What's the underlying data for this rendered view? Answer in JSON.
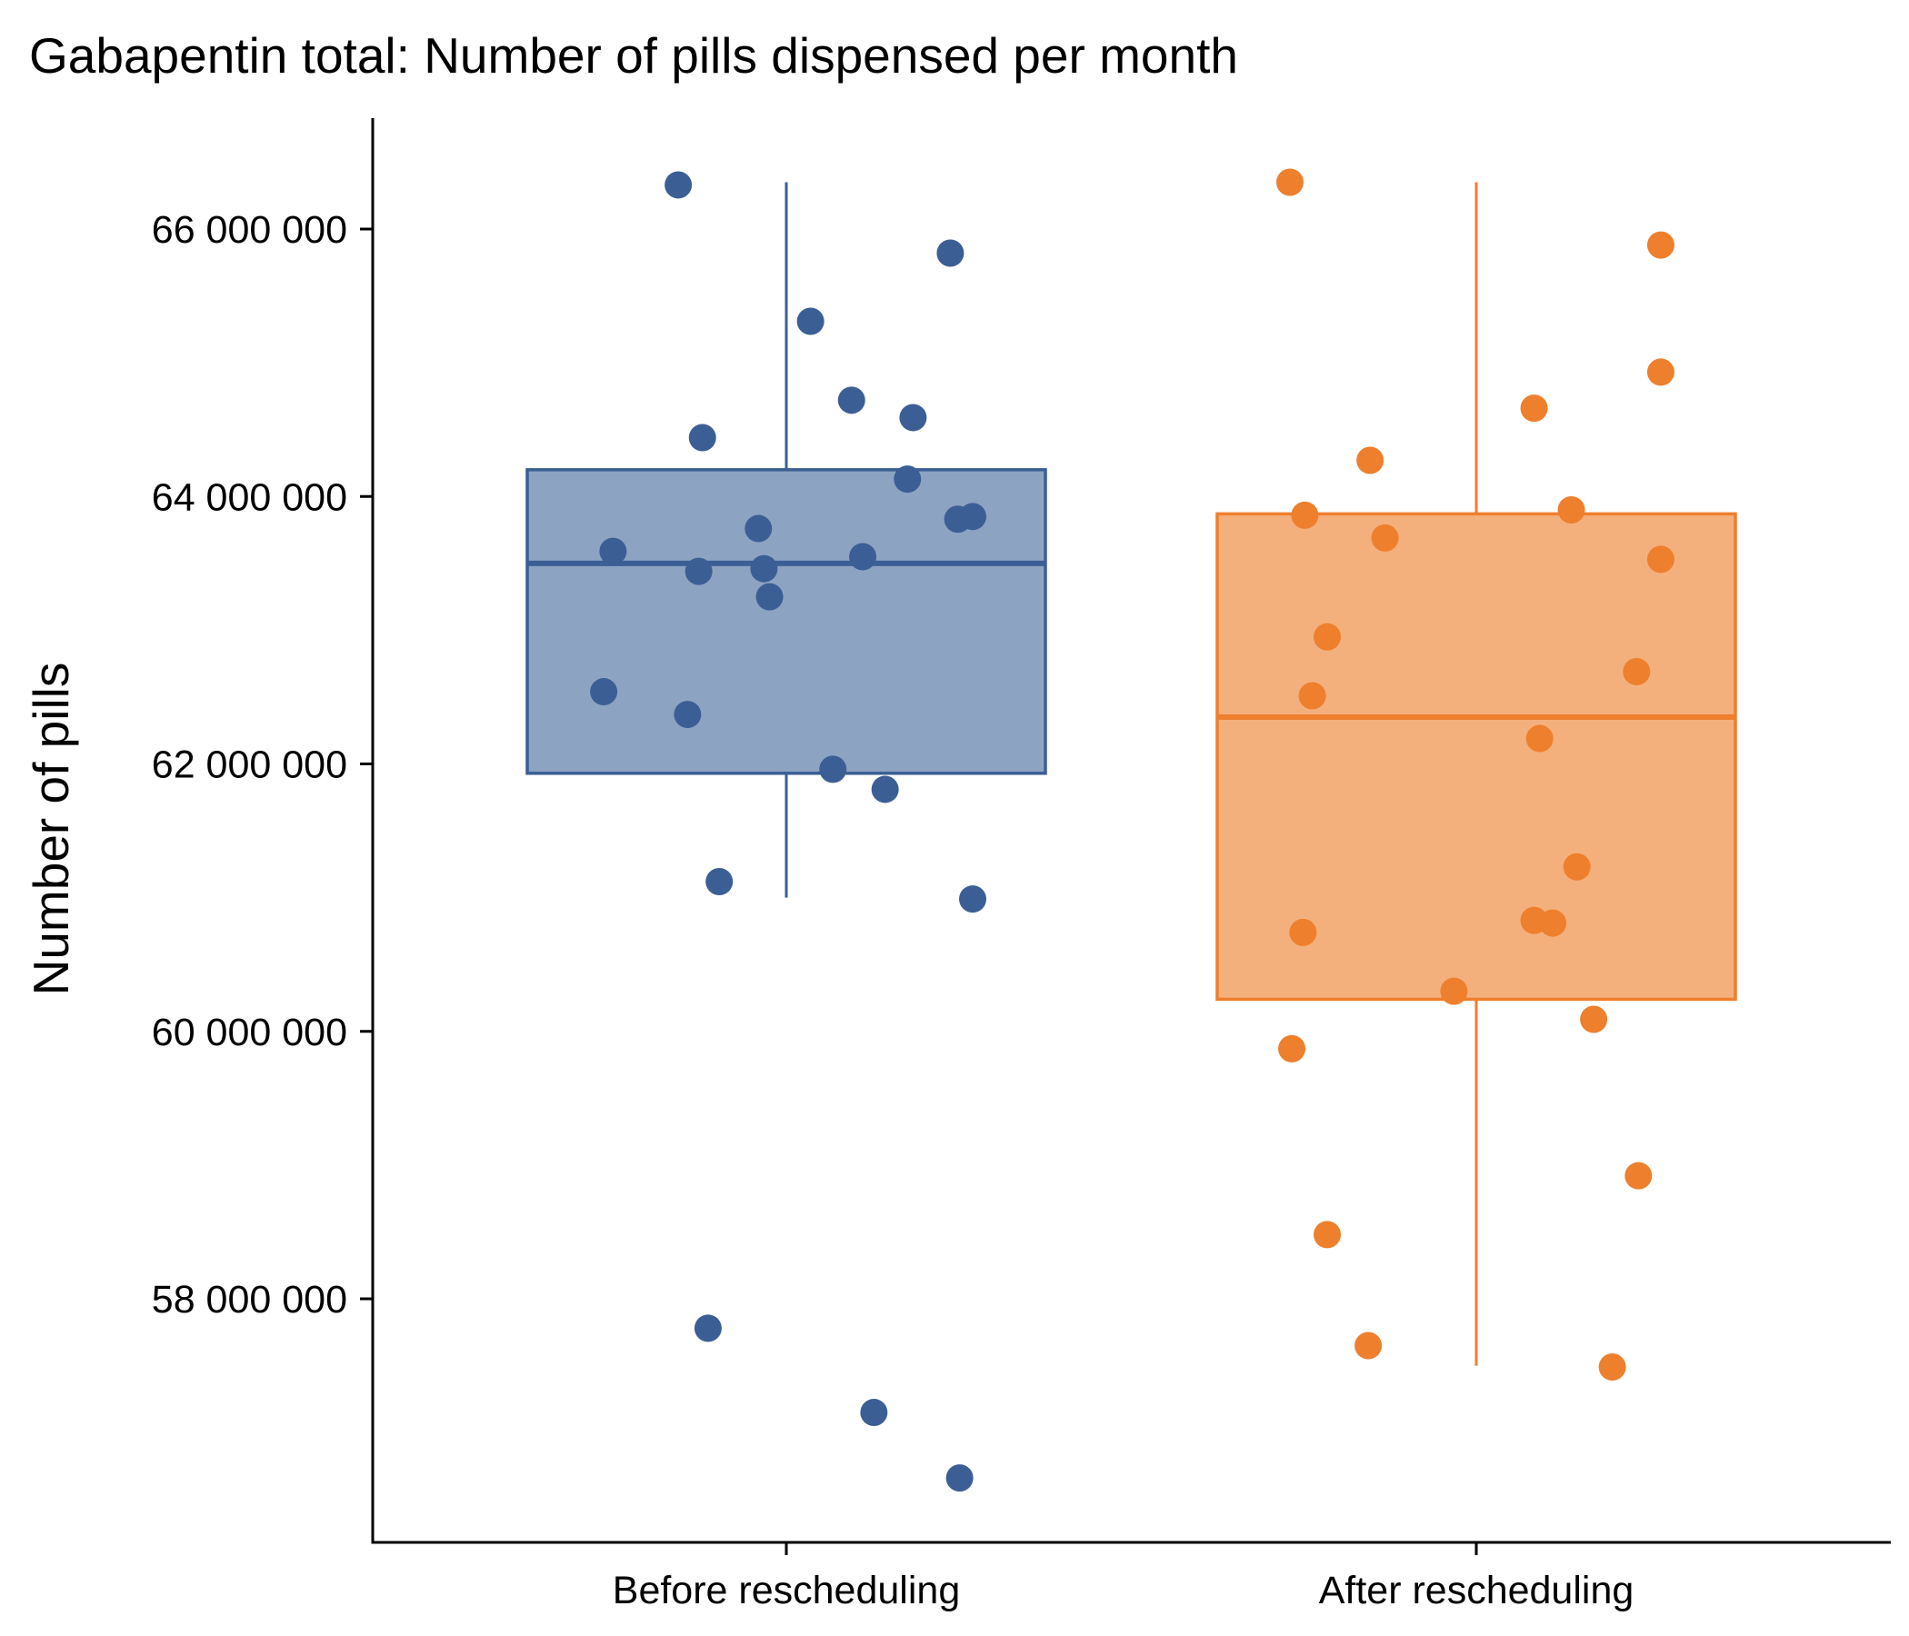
{
  "chart_data": {
    "type": "box",
    "title": "Gabapentin total: Number of pills dispensed per month",
    "xlabel": "",
    "ylabel": "Number of pills",
    "ylim": [
      56400000,
      66800000
    ],
    "yticks": [
      58000000,
      60000000,
      62000000,
      64000000,
      66000000
    ],
    "ytick_labels": [
      "58 000 000",
      "60 000 000",
      "62 000 000",
      "64 000 000",
      "66 000 000"
    ],
    "categories": [
      "Before rescheduling",
      "After rescheduling"
    ],
    "grid": false,
    "legend": "none",
    "series": [
      {
        "category": "Before rescheduling",
        "color": "#3B5F95",
        "fill": "#8DA3C2",
        "box": {
          "whisker_low": 61000000,
          "q1": 61930000,
          "median": 63500000,
          "q3": 64200000,
          "whisker_high": 66350000
        },
        "points": [
          {
            "jitter": -0.58,
            "y": 66330000
          },
          {
            "jitter": 0.88,
            "y": 65820000
          },
          {
            "jitter": 0.13,
            "y": 65310000
          },
          {
            "jitter": 0.35,
            "y": 64720000
          },
          {
            "jitter": 0.68,
            "y": 64590000
          },
          {
            "jitter": -0.45,
            "y": 64440000
          },
          {
            "jitter": 0.65,
            "y": 64130000
          },
          {
            "jitter": 1.0,
            "y": 63850000
          },
          {
            "jitter": 0.92,
            "y": 63830000
          },
          {
            "jitter": -0.15,
            "y": 63760000
          },
          {
            "jitter": -0.93,
            "y": 63590000
          },
          {
            "jitter": 0.41,
            "y": 63550000
          },
          {
            "jitter": -0.12,
            "y": 63460000
          },
          {
            "jitter": -0.47,
            "y": 63440000
          },
          {
            "jitter": -0.09,
            "y": 63250000
          },
          {
            "jitter": -0.98,
            "y": 62540000
          },
          {
            "jitter": -0.53,
            "y": 62370000
          },
          {
            "jitter": 0.25,
            "y": 61960000
          },
          {
            "jitter": 0.53,
            "y": 61810000
          },
          {
            "jitter": -0.36,
            "y": 61120000
          },
          {
            "jitter": 1.0,
            "y": 60990000
          },
          {
            "jitter": -0.42,
            "y": 57780000
          },
          {
            "jitter": 0.47,
            "y": 57150000
          },
          {
            "jitter": 0.93,
            "y": 56660000
          }
        ]
      },
      {
        "category": "After rescheduling",
        "color": "#EE7F2D",
        "fill": "#F4B07C",
        "box": {
          "whisker_low": 57500000,
          "q1": 60240000,
          "median": 62350000,
          "q3": 63870000,
          "whisker_high": 66350000
        },
        "points": [
          {
            "jitter": -1.0,
            "y": 66350000
          },
          {
            "jitter": 0.99,
            "y": 65880000
          },
          {
            "jitter": 0.99,
            "y": 64930000
          },
          {
            "jitter": 0.31,
            "y": 64660000
          },
          {
            "jitter": -0.57,
            "y": 64270000
          },
          {
            "jitter": 0.51,
            "y": 63900000
          },
          {
            "jitter": -0.92,
            "y": 63860000
          },
          {
            "jitter": -0.49,
            "y": 63690000
          },
          {
            "jitter": 0.99,
            "y": 63530000
          },
          {
            "jitter": -0.8,
            "y": 62950000
          },
          {
            "jitter": 0.86,
            "y": 62690000
          },
          {
            "jitter": -0.88,
            "y": 62510000
          },
          {
            "jitter": 0.34,
            "y": 62190000
          },
          {
            "jitter": 0.54,
            "y": 61230000
          },
          {
            "jitter": 0.31,
            "y": 60830000
          },
          {
            "jitter": 0.41,
            "y": 60810000
          },
          {
            "jitter": -0.93,
            "y": 60740000
          },
          {
            "jitter": -0.12,
            "y": 60300000
          },
          {
            "jitter": 0.63,
            "y": 60090000
          },
          {
            "jitter": -0.99,
            "y": 59870000
          },
          {
            "jitter": 0.87,
            "y": 58920000
          },
          {
            "jitter": -0.8,
            "y": 58480000
          },
          {
            "jitter": -0.58,
            "y": 57650000
          },
          {
            "jitter": 0.73,
            "y": 57490000
          }
        ]
      }
    ]
  }
}
